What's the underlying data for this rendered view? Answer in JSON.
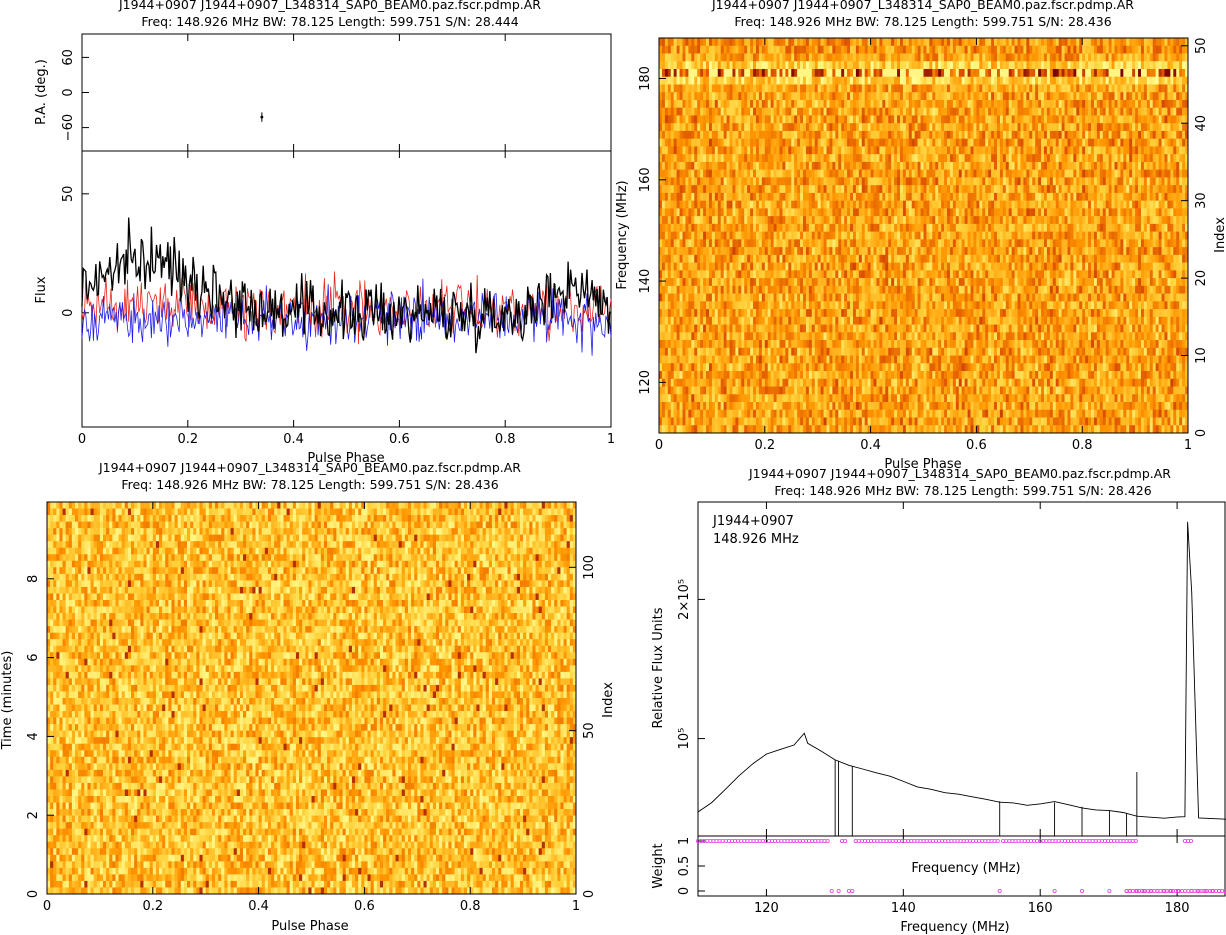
{
  "panels": {
    "profile": {
      "title1": "J1944+0907 J1944+0907_L348314_SAP0_BEAM0.paz.fscr.pdmp.AR",
      "title2": "Freq: 148.926 MHz BW: 78.125 Length: 599.751 S/N: 28.444",
      "xlabel": "Pulse Phase",
      "ylabel_pa": "P.A. (deg.)",
      "ylabel_flux": "Flux"
    },
    "freq_phase": {
      "title1": "J1944+0907 J1944+0907_L348314_SAP0_BEAM0.paz.fscr.pdmp.AR",
      "title2": "Freq: 148.926 MHz BW: 78.125 Length: 599.751 S/N: 28.436",
      "xlabel": "Pulse Phase",
      "ylabel_left": "Frequency (MHz)",
      "ylabel_right": "Index"
    },
    "time_phase": {
      "title1": "J1944+0907 J1944+0907_L348314_SAP0_BEAM0.paz.fscr.pdmp.AR",
      "title2": "Freq: 148.926 MHz BW: 78.125 Length: 599.751 S/N: 28.436",
      "xlabel": "Pulse Phase",
      "ylabel_left": "Time (minutes)",
      "ylabel_right": "Index"
    },
    "bandpass": {
      "title1": "J1944+0907 J1944+0907_L348314_SAP0_BEAM0.paz.fscr.pdmp.AR",
      "title2": "Freq: 148.926 MHz BW: 78.125 Length: 599.751 S/N: 28.426",
      "annotation1": "J1944+0907",
      "annotation2": "148.926 MHz",
      "ylabel": "Relative Flux Units",
      "ylabel_weight": "Weight",
      "xlabel_top": "Frequency (MHz)",
      "xlabel": "Frequency (MHz)"
    }
  },
  "colors": {
    "stokes_I": "#000000",
    "linear": "#e8281e",
    "circular": "#1e1ee6",
    "weights": "#e040e0",
    "heat_low": "#ffff80",
    "heat_mid": "#ff9a00",
    "heat_high": "#7a0000"
  },
  "chart_data": [
    {
      "type": "line",
      "panel": "profile-pa",
      "x_range": [
        0,
        1
      ],
      "ylim": [
        -100,
        100
      ],
      "yticks": [
        "60",
        "0",
        "−60"
      ],
      "ytick_values": [
        60,
        0,
        -60
      ],
      "points": [
        {
          "x": 0.34,
          "y": -42,
          "err": 8
        }
      ]
    },
    {
      "type": "line",
      "panel": "profile-flux",
      "x_range": [
        0,
        1
      ],
      "xticks": [
        "0",
        "0.2",
        "0.4",
        "0.6",
        "0.8",
        "1"
      ],
      "xtick_values": [
        0,
        0.2,
        0.4,
        0.6,
        0.8,
        1
      ],
      "ylim": [
        -48,
        68
      ],
      "yticks": [
        "50",
        "0"
      ],
      "ytick_values": [
        50,
        0
      ],
      "series": [
        {
          "name": "Stokes I",
          "color_key": "stokes_I",
          "baseline": 8,
          "noise": 16
        },
        {
          "name": "Linear",
          "color_key": "linear",
          "baseline": 2,
          "noise": 15
        },
        {
          "name": "Circular",
          "color_key": "circular",
          "baseline": -2,
          "noise": 14
        }
      ]
    },
    {
      "type": "heatmap",
      "panel": "freq-phase",
      "x_range": [
        0,
        1
      ],
      "xticks": [
        "0",
        "0.2",
        "0.4",
        "0.6",
        "0.8",
        "1"
      ],
      "xtick_values": [
        0,
        0.2,
        0.4,
        0.6,
        0.8,
        1
      ],
      "ylim": [
        110,
        188
      ],
      "yticks": [
        "120",
        "140",
        "160",
        "180"
      ],
      "ytick_values": [
        120,
        140,
        160,
        180
      ],
      "y2lim": [
        0,
        51
      ],
      "y2ticks": [
        "0",
        "10",
        "20",
        "30",
        "40",
        "50"
      ],
      "y2tick_values": [
        0,
        10,
        20,
        30,
        40,
        50
      ],
      "channels": 51,
      "phase_bins": 300
    },
    {
      "type": "heatmap",
      "panel": "time-phase",
      "x_range": [
        0,
        1
      ],
      "xticks": [
        "0",
        "0.2",
        "0.4",
        "0.6",
        "0.8",
        "1"
      ],
      "xtick_values": [
        0,
        0.2,
        0.4,
        0.6,
        0.8,
        1
      ],
      "ylim": [
        0,
        9.95
      ],
      "yticks": [
        "0",
        "2",
        "4",
        "6",
        "8"
      ],
      "ytick_values": [
        0,
        2,
        4,
        6,
        8
      ],
      "y2lim": [
        0,
        120
      ],
      "y2ticks": [
        "0",
        "50",
        "100"
      ],
      "y2tick_values": [
        0,
        50,
        100
      ],
      "subints": 120,
      "phase_bins": 300
    },
    {
      "type": "line",
      "panel": "bandpass",
      "xlim": [
        110,
        187
      ],
      "xticks": [
        "120",
        "140",
        "160",
        "180"
      ],
      "xtick_values": [
        120,
        140,
        160,
        180
      ],
      "ylim": [
        30000,
        270000
      ],
      "yticks": [
        "10⁵",
        "2×10⁵"
      ],
      "ytick_values": [
        100000,
        200000
      ],
      "x": [
        110,
        112,
        114,
        116,
        118,
        120,
        122,
        124,
        125.5,
        126,
        128,
        130,
        132,
        134,
        136,
        138,
        140,
        142,
        144,
        146,
        148,
        150,
        152,
        154,
        156,
        158,
        160,
        162,
        164,
        166,
        168,
        170,
        172,
        174,
        178,
        180,
        181,
        181.4,
        182,
        183,
        187
      ],
      "y": [
        48000,
        55000,
        64000,
        74000,
        82000,
        88000,
        92000,
        95000,
        104000,
        96000,
        90000,
        85000,
        81000,
        78000,
        75000,
        72000,
        69000,
        66000,
        64000,
        62000,
        60000,
        59000,
        57000,
        55000,
        54000,
        53000,
        53000,
        54000,
        53000,
        51000,
        49000,
        48000,
        47000,
        44000,
        43000,
        43000,
        43000,
        255000,
        205000,
        43000,
        43000
      ],
      "dips": [
        130,
        130.5,
        132.5,
        154,
        162,
        166,
        170,
        172.5
      ],
      "weights": {
        "ylim": [
          -0.1,
          1.1
        ],
        "yticks": [
          "0",
          "0.5",
          "1"
        ],
        "ytick_values": [
          0,
          0.5,
          1
        ],
        "zero_at": [
          129.5,
          130.5,
          132,
          132.5,
          154,
          162,
          166,
          170,
          172.5,
          173,
          174,
          175,
          176,
          177,
          178,
          179,
          180,
          182,
          183,
          184,
          185,
          186,
          187
        ],
        "one_range": [
          [
            110,
            129.3
          ],
          [
            131,
            131.8
          ],
          [
            133,
            153.8
          ],
          [
            154.5,
            174
          ],
          [
            181,
            182
          ]
        ]
      }
    }
  ]
}
